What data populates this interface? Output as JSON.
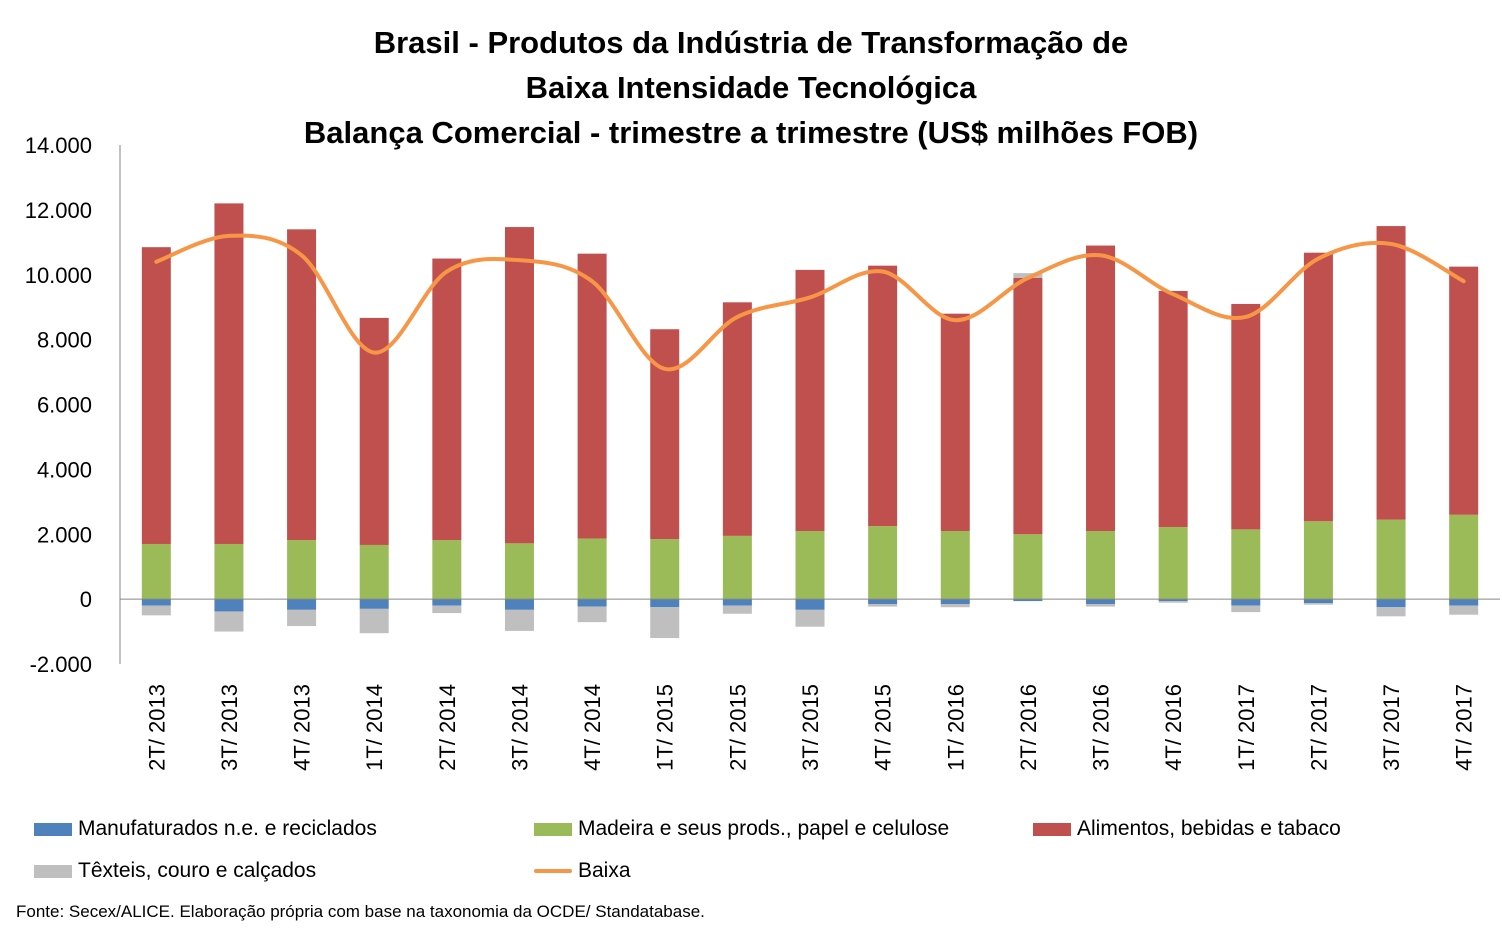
{
  "chart_data": {
    "type": "bar",
    "title_lines": [
      "Brasil - Produtos da Indústria de Transformação de",
      "Baixa Intensidade Tecnológica",
      "Balança Comercial - trimestre a trimestre (US$ milhões FOB)"
    ],
    "categories": [
      "2T/ 2013",
      "3T/ 2013",
      "4T/ 2013",
      "1T/ 2014",
      "2T/ 2014",
      "3T/ 2014",
      "4T/ 2014",
      "1T/ 2015",
      "2T/ 2015",
      "3T/ 2015",
      "4T/ 2015",
      "1T/ 2016",
      "2T/ 2016",
      "3T/ 2016",
      "4T/ 2016",
      "1T/ 2017",
      "2T/ 2017",
      "3T/ 2017",
      "4T/ 2017"
    ],
    "ylim": [
      -2000,
      14000
    ],
    "yticks": [
      -2000,
      0,
      2000,
      4000,
      6000,
      8000,
      10000,
      12000,
      14000
    ],
    "ytick_labels": [
      "-2.000",
      "0",
      "2.000",
      "4.000",
      "6.000",
      "8.000",
      "10.000",
      "12.000",
      "14.000"
    ],
    "stacked": true,
    "series": [
      {
        "name": "Manufaturados n.e. e reciclados",
        "kind": "bar",
        "color": "#4f81bd",
        "values": [
          -200,
          -380,
          -330,
          -300,
          -200,
          -330,
          -230,
          -250,
          -200,
          -330,
          -150,
          -150,
          -60,
          -150,
          -60,
          -200,
          -120,
          -250,
          -200
        ]
      },
      {
        "name": "Madeira e seus prods., papel e celulose",
        "kind": "bar",
        "color": "#9bbb59",
        "values": [
          1700,
          1700,
          1820,
          1670,
          1820,
          1720,
          1870,
          1850,
          1950,
          2100,
          2250,
          2100,
          2000,
          2100,
          2220,
          2150,
          2400,
          2450,
          2600
        ]
      },
      {
        "name": "Alimentos, bebidas e tabaco",
        "kind": "bar",
        "color": "#c0504d",
        "values": [
          9150,
          10500,
          9580,
          7000,
          8680,
          9750,
          8780,
          6470,
          7200,
          8050,
          8030,
          6700,
          7900,
          8800,
          7280,
          6950,
          8280,
          9050,
          7650
        ]
      },
      {
        "name": "Têxteis, couro e calçados",
        "kind": "bar",
        "color": "#bfbfbf",
        "values": [
          -300,
          -620,
          -500,
          -750,
          -230,
          -650,
          -480,
          -950,
          -250,
          -520,
          -80,
          -100,
          150,
          -80,
          -50,
          -200,
          -50,
          -280,
          -280
        ]
      },
      {
        "name": "Baixa",
        "kind": "line",
        "color": "#f79646",
        "values": [
          10400,
          11200,
          10600,
          7600,
          10100,
          10450,
          9800,
          7100,
          8700,
          9300,
          10100,
          8600,
          9900,
          10600,
          9400,
          8700,
          10500,
          10950,
          9800
        ]
      }
    ]
  },
  "legend": [
    {
      "label": "Manufaturados n.e. e reciclados",
      "color": "#4f81bd",
      "icon": "bar-swatch"
    },
    {
      "label": "Madeira e seus prods., papel e celulose",
      "color": "#9bbb59",
      "icon": "bar-swatch"
    },
    {
      "label": "Alimentos, bebidas e tabaco",
      "color": "#c0504d",
      "icon": "bar-swatch"
    },
    {
      "label": "Têxteis, couro e calçados",
      "color": "#bfbfbf",
      "icon": "bar-swatch"
    },
    {
      "label": "Baixa",
      "color": "#f79646",
      "icon": "line-swatch"
    }
  ],
  "source": "Fonte: Secex/ALICE. Elaboração própria com base na taxonomia da OCDE/ Standatabase."
}
